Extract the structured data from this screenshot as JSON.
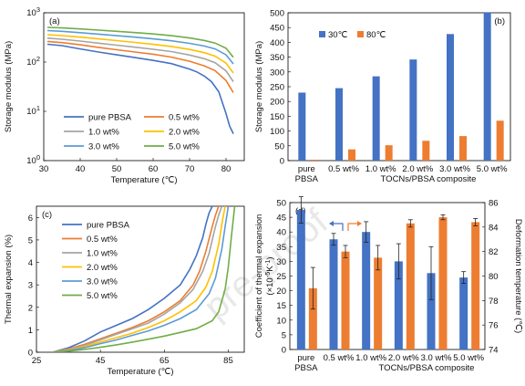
{
  "watermark": "pre-proof",
  "chart_data": [
    {
      "panel": "(a)",
      "type": "line",
      "xlabel": "Temperature (℃)",
      "ylabel": "Storage modulus (MPa)",
      "xlim": [
        30,
        85
      ],
      "ylim": [
        1,
        1000
      ],
      "yscale": "log",
      "xticks": [
        "30",
        "40",
        "50",
        "60",
        "70",
        "80"
      ],
      "yticks": [
        {
          "base": "10",
          "exp": "0"
        },
        {
          "base": "10",
          "exp": "1"
        },
        {
          "base": "10",
          "exp": "2"
        },
        {
          "base": "10",
          "exp": "3"
        }
      ],
      "legend": "bottom-left",
      "series": [
        {
          "name": "pure PBSA",
          "color": "#4472c4",
          "x": [
            31,
            35,
            40,
            45,
            50,
            55,
            60,
            65,
            70,
            72,
            74,
            76,
            78,
            79,
            80,
            81,
            82
          ],
          "y": [
            230,
            215,
            185,
            160,
            140,
            123,
            108,
            93,
            72,
            63,
            52,
            40,
            25,
            15,
            9,
            5,
            3.5
          ]
        },
        {
          "name": "0.5 wt%",
          "color": "#ed7d31",
          "x": [
            31,
            35,
            40,
            45,
            50,
            55,
            60,
            65,
            70,
            74,
            77,
            80,
            82
          ],
          "y": [
            262,
            248,
            224,
            199,
            178,
            160,
            144,
            126,
            104,
            84,
            67,
            42,
            24
          ]
        },
        {
          "name": "1.0 wt%",
          "color": "#a5a5a5",
          "x": [
            31,
            35,
            40,
            45,
            50,
            55,
            60,
            65,
            70,
            74,
            77,
            80,
            82
          ],
          "y": [
            305,
            290,
            267,
            242,
            220,
            200,
            182,
            163,
            139,
            117,
            97,
            66,
            40
          ]
        },
        {
          "name": "2.0 wt%",
          "color": "#ffc000",
          "x": [
            31,
            35,
            40,
            45,
            50,
            55,
            60,
            65,
            70,
            74,
            77,
            80,
            82
          ],
          "y": [
            360,
            345,
            320,
            295,
            272,
            250,
            229,
            207,
            180,
            155,
            132,
            95,
            60
          ]
        },
        {
          "name": "3.0 wt%",
          "color": "#5b9bd5",
          "x": [
            31,
            35,
            40,
            45,
            50,
            55,
            60,
            65,
            70,
            74,
            77,
            80,
            82
          ],
          "y": [
            435,
            420,
            395,
            368,
            343,
            320,
            296,
            270,
            240,
            212,
            185,
            140,
            92
          ]
        },
        {
          "name": "5.0 wt%",
          "color": "#70ad47",
          "x": [
            31,
            35,
            40,
            45,
            50,
            55,
            60,
            65,
            70,
            74,
            77,
            80,
            82
          ],
          "y": [
            505,
            492,
            470,
            445,
            420,
            397,
            372,
            343,
            308,
            275,
            243,
            190,
            125
          ]
        }
      ]
    },
    {
      "panel": "(b)",
      "type": "bar",
      "xlabel": "TOCNs/PBSA composite",
      "ylabel": "Storage modulus (MPa)",
      "ylim": [
        0,
        500
      ],
      "yticks": [
        "0",
        "50",
        "100",
        "150",
        "200",
        "250",
        "300",
        "350",
        "400",
        "450",
        "500"
      ],
      "categories": [
        [
          "pure",
          "PBSA"
        ],
        [
          "0.5 wt%"
        ],
        [
          "1.0 wt%"
        ],
        [
          "2.0 wt%"
        ],
        [
          "3.0 wt%"
        ],
        [
          "5.0 wt%"
        ]
      ],
      "legend": "top-left",
      "series": [
        {
          "name": "30℃",
          "color": "#4472c4",
          "values": [
            230,
            245,
            285,
            342,
            428,
            502
          ]
        },
        {
          "name": "80℃",
          "color": "#ed7d31",
          "values": [
            3,
            38,
            52,
            67,
            83,
            135
          ]
        }
      ]
    },
    {
      "panel": "(c)",
      "type": "line",
      "xlabel": "Temperature (℃)",
      "ylabel": "Thermal expansion (%)",
      "xlim": [
        25,
        90
      ],
      "ylim": [
        0,
        6.5
      ],
      "xticks": [
        "25",
        "45",
        "65",
        "85"
      ],
      "yticks": [
        "0",
        "1",
        "2",
        "3",
        "4",
        "5",
        "6"
      ],
      "legend": "top-left",
      "series": [
        {
          "name": "pure PBSA",
          "color": "#4472c4",
          "x": [
            30,
            35,
            40,
            45,
            50,
            55,
            60,
            65,
            70,
            73,
            75,
            77,
            78,
            79,
            80
          ],
          "y": [
            0,
            0.2,
            0.5,
            0.9,
            1.2,
            1.5,
            1.9,
            2.4,
            3.0,
            3.7,
            4.3,
            5.1,
            5.7,
            6.2,
            6.5
          ]
        },
        {
          "name": "0.5 wt%",
          "color": "#ed7d31",
          "x": [
            30,
            35,
            40,
            45,
            50,
            55,
            60,
            65,
            70,
            74,
            76,
            78,
            80,
            81,
            82
          ],
          "y": [
            0,
            0.15,
            0.35,
            0.6,
            0.85,
            1.1,
            1.4,
            1.8,
            2.3,
            3.0,
            3.6,
            4.5,
            5.6,
            6.1,
            6.5
          ]
        },
        {
          "name": "1.0 wt%",
          "color": "#a5a5a5",
          "x": [
            30,
            35,
            40,
            45,
            50,
            55,
            60,
            65,
            70,
            74,
            77,
            79,
            81,
            82,
            83
          ],
          "y": [
            0,
            0.12,
            0.3,
            0.55,
            0.8,
            1.05,
            1.3,
            1.7,
            2.2,
            2.8,
            3.6,
            4.4,
            5.6,
            6.1,
            6.5
          ]
        },
        {
          "name": "2.0 wt%",
          "color": "#ffc000",
          "x": [
            30,
            35,
            40,
            45,
            50,
            55,
            60,
            65,
            70,
            75,
            78,
            80,
            82,
            83,
            84
          ],
          "y": [
            0,
            0.1,
            0.25,
            0.45,
            0.65,
            0.85,
            1.1,
            1.4,
            1.8,
            2.3,
            2.9,
            3.6,
            4.8,
            5.7,
            6.5
          ]
        },
        {
          "name": "3.0 wt%",
          "color": "#5b9bd5",
          "x": [
            30,
            35,
            40,
            45,
            50,
            55,
            60,
            65,
            70,
            75,
            79,
            81,
            83,
            84,
            85
          ],
          "y": [
            0,
            0.08,
            0.2,
            0.38,
            0.55,
            0.75,
            0.95,
            1.2,
            1.5,
            1.9,
            2.6,
            3.3,
            4.6,
            5.6,
            6.5
          ]
        },
        {
          "name": "5.0 wt%",
          "color": "#70ad47",
          "x": [
            30,
            35,
            40,
            45,
            50,
            55,
            60,
            65,
            70,
            75,
            80,
            82,
            84,
            85,
            86,
            87
          ],
          "y": [
            0,
            0.05,
            0.12,
            0.22,
            0.33,
            0.45,
            0.58,
            0.72,
            0.88,
            1.05,
            1.4,
            1.8,
            2.8,
            3.8,
            5.2,
            6.5
          ]
        }
      ]
    },
    {
      "panel": "(d)",
      "type": "bar",
      "xlabel": "TOCNs/PBSA composite",
      "ylabel_left": "Coefficient of thermal expansion",
      "ylabel_left_unit": {
        "prefix": "(×10",
        "exp": "-5",
        "suffix": "K",
        "exp2": "-1",
        "end": ")"
      },
      "ylabel_right": "Deformation temperature (℃)",
      "ylim_left": [
        0,
        50
      ],
      "ylim_right": [
        74,
        86
      ],
      "yticks_left": [
        "0",
        "5",
        "10",
        "15",
        "20",
        "25",
        "30",
        "35",
        "40",
        "45",
        "50"
      ],
      "yticks_right": [
        "74",
        "76",
        "78",
        "80",
        "82",
        "84",
        "86"
      ],
      "categories": [
        [
          "pure",
          "PBSA"
        ],
        [
          "0.5 wt%"
        ],
        [
          "1.0 wt%"
        ],
        [
          "2.0 wt%"
        ],
        [
          "3.0 wt%"
        ],
        [
          "5.0 wt%"
        ]
      ],
      "series": [
        {
          "axis": "left",
          "color": "#4472c4",
          "values": [
            47.5,
            37.5,
            40,
            30,
            26,
            24.5
          ],
          "errors": [
            4.5,
            2,
            3.5,
            6,
            9,
            2
          ]
        },
        {
          "axis": "right",
          "color": "#ed7d31",
          "values": [
            79,
            82,
            81.5,
            84.3,
            84.8,
            84.4
          ],
          "errors": [
            1.7,
            0.5,
            1,
            0.3,
            0.2,
            0.3
          ]
        }
      ]
    }
  ]
}
